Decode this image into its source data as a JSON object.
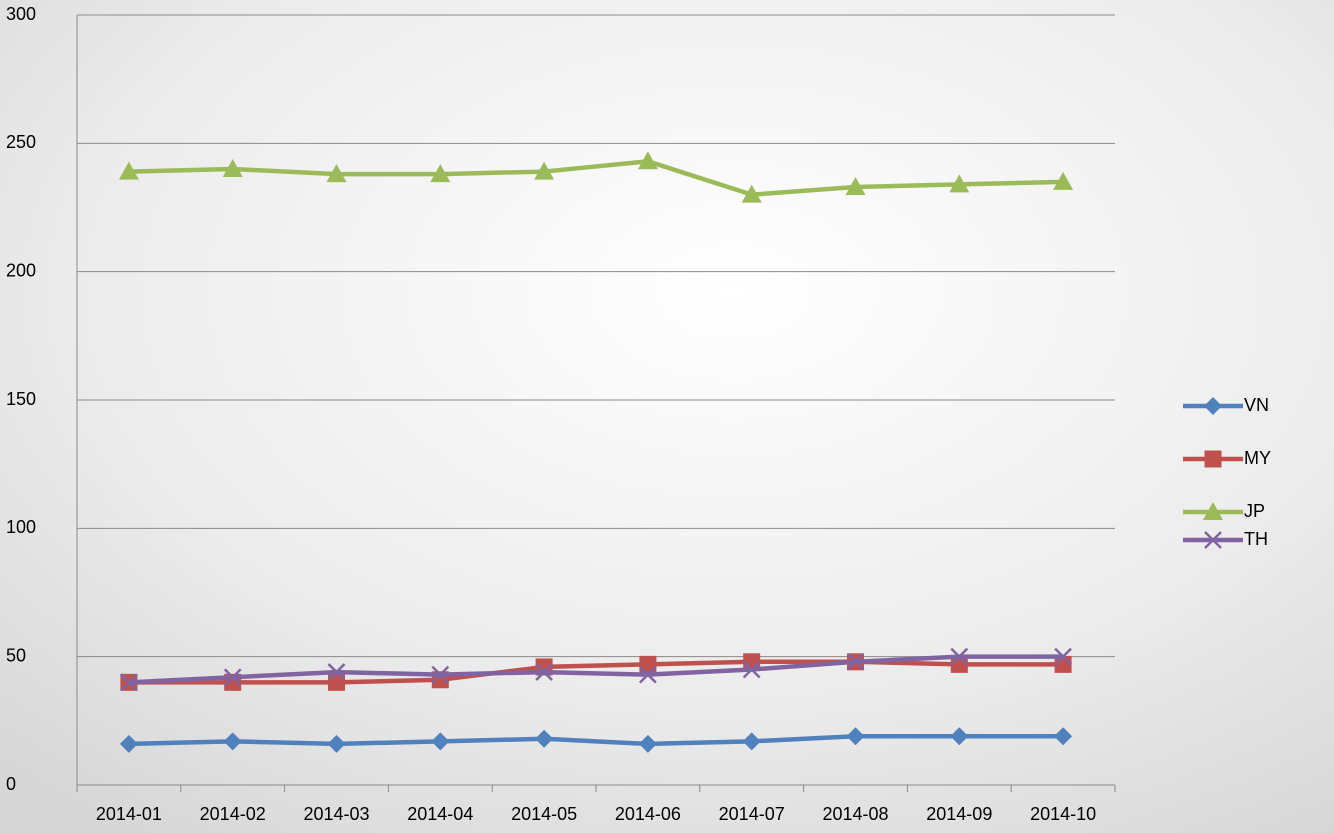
{
  "chart_data": {
    "type": "line",
    "categories": [
      "2014-01",
      "2014-02",
      "2014-03",
      "2014-04",
      "2014-05",
      "2014-06",
      "2014-07",
      "2014-08",
      "2014-09",
      "2014-10"
    ],
    "series": [
      {
        "name": "VN",
        "color": "#4f81bd",
        "marker": "diamond",
        "values": [
          16,
          17,
          16,
          17,
          18,
          16,
          17,
          19,
          19,
          19
        ]
      },
      {
        "name": "MY",
        "color": "#c0504d",
        "marker": "square",
        "values": [
          40,
          40,
          40,
          41,
          46,
          47,
          48,
          48,
          47,
          47
        ]
      },
      {
        "name": "JP",
        "color": "#9bbb59",
        "marker": "triangle",
        "values": [
          239,
          240,
          238,
          238,
          239,
          243,
          230,
          233,
          234,
          235
        ]
      },
      {
        "name": "TH",
        "color": "#8064a2",
        "marker": "x",
        "values": [
          40,
          42,
          44,
          43,
          44,
          43,
          45,
          48,
          50,
          50
        ]
      }
    ],
    "ylim": [
      0,
      300
    ],
    "yticks": [
      0,
      50,
      100,
      150,
      200,
      250,
      300
    ],
    "grid": true,
    "legend": "right"
  }
}
